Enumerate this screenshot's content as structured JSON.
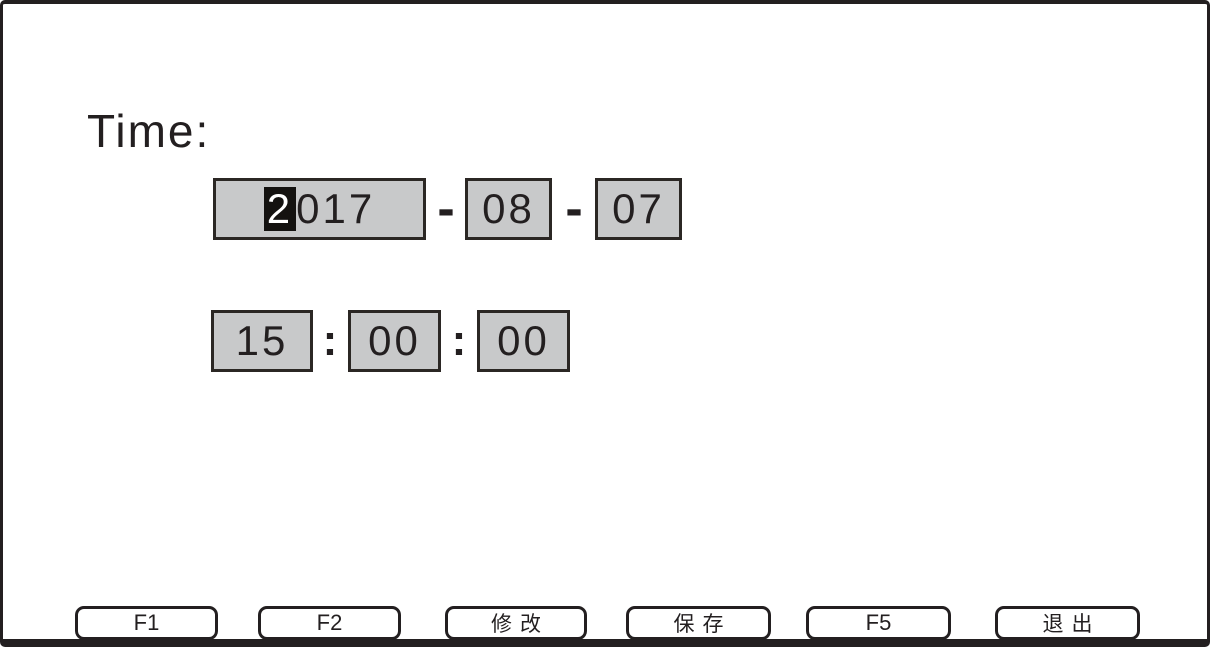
{
  "title": "Time:",
  "date": {
    "year_cursor": "2",
    "year_rest": "017",
    "month": "08",
    "day": "07",
    "separator": "-"
  },
  "time": {
    "hour": "15",
    "minute": "00",
    "second": "00",
    "separator": ":"
  },
  "function_keys": [
    {
      "label": "F1"
    },
    {
      "label": "F2"
    },
    {
      "label": "修改"
    },
    {
      "label": "保存"
    },
    {
      "label": "F5"
    },
    {
      "label": "退出"
    }
  ],
  "colors": {
    "background": "#ffffff",
    "frame_border": "#231f20",
    "field_background": "#c8c9ca",
    "field_border": "#2b2724",
    "cursor_background": "#141210",
    "cursor_text": "#ffffff",
    "text": "#231f20"
  }
}
